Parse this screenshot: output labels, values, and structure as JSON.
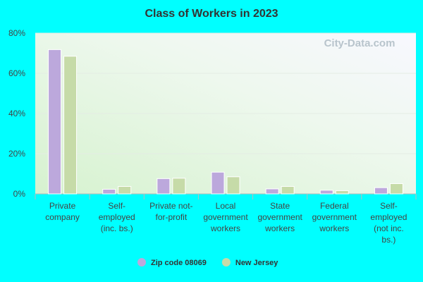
{
  "chart_data": {
    "type": "bar",
    "title": "Class of Workers in 2023",
    "categories": [
      "Private\ncompany",
      "Self-\nemployed\n(inc. bs.)",
      "Private not-\nfor-profit",
      "Local\ngovernment\nworkers",
      "State\ngovernment\nworkers",
      "Federal\ngovernment\nworkers",
      "Self-\nemployed\n(not inc.\nbs.)"
    ],
    "series": [
      {
        "name": "Zip code 08069",
        "color": "#bca8dc",
        "values": [
          71.8,
          2.3,
          7.6,
          10.8,
          2.5,
          1.8,
          3.1
        ]
      },
      {
        "name": "New Jersey",
        "color": "#c6dba8",
        "values": [
          68.5,
          3.7,
          7.8,
          8.5,
          3.7,
          1.6,
          5.1
        ]
      }
    ],
    "ylim": [
      0,
      80
    ],
    "yticks": [
      {
        "value": 0,
        "label": "0%"
      },
      {
        "value": 20,
        "label": "20%"
      },
      {
        "value": 40,
        "label": "40%"
      },
      {
        "value": 60,
        "label": "60%"
      },
      {
        "value": 80,
        "label": "80%"
      }
    ],
    "grid": true,
    "watermark": "City-Data.com"
  }
}
